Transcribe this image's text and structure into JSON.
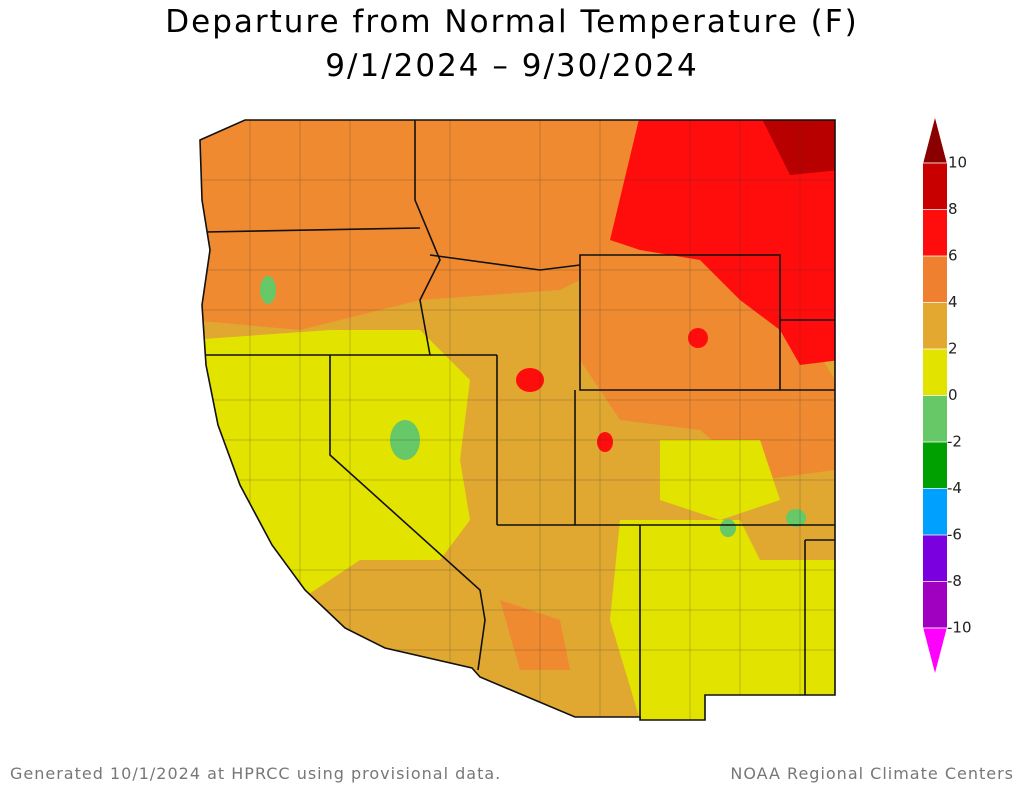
{
  "title": [
    "Departure from Normal Temperature (F)",
    "9/1/2024 – 9/30/2024"
  ],
  "legend": {
    "ticks": [
      10,
      8,
      6,
      4,
      2,
      0,
      -2,
      -4,
      -6,
      -8,
      -10
    ],
    "colors": [
      "#8a0000",
      "#c80000",
      "#ff0d0d",
      "#ef8030",
      "#e3a830",
      "#e3e300",
      "#66c866",
      "#00a000",
      "#00a0ff",
      "#7a00e0",
      "#a000c0",
      "#ff00ff"
    ]
  },
  "footer": {
    "left": "Generated 10/1/2024 at HPRCC using provisional data.",
    "right": "NOAA Regional Climate Centers"
  }
}
